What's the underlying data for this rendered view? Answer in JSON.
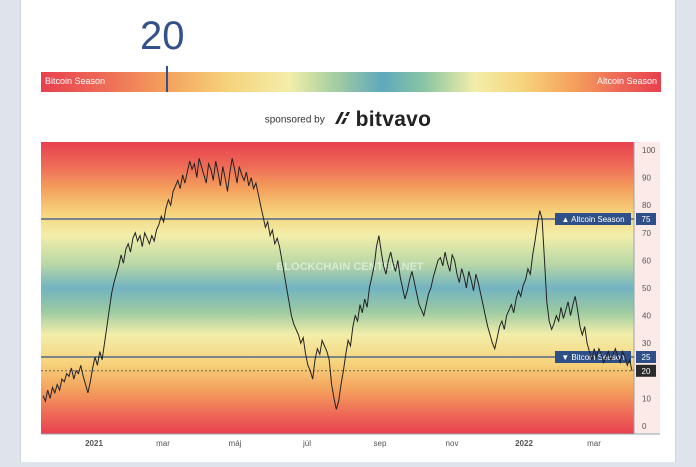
{
  "header": {
    "index_value": "20",
    "scale_left_label": "Bitcoin Season",
    "scale_right_label": "Altcoin Season",
    "current_index": 20
  },
  "sponsor": {
    "text": "sponsored by",
    "name": "bitvavo",
    "logo_icon": "bitvavo-logo-icon"
  },
  "colors": {
    "index_text": "#34528a",
    "season_line": "#34528a",
    "line": "#222222"
  },
  "chart_data": {
    "type": "line",
    "x_tick_labels": [
      "2021",
      "mar",
      "máj",
      "júl",
      "sep",
      "nov",
      "2022",
      "mar"
    ],
    "y_ticks": [
      0,
      10,
      20,
      30,
      40,
      50,
      60,
      70,
      80,
      90,
      100
    ],
    "ylim": [
      0,
      100
    ],
    "watermark": "BLOCKCHAIN CENTER.NET",
    "thresholds": [
      {
        "label": "▲ Altcoin Season",
        "value": 75
      },
      {
        "label": "▼ Bitcoin Season",
        "value": 25
      }
    ],
    "current_value": 20,
    "current_label": "20",
    "series": [
      {
        "values": [
          11,
          9,
          13,
          10,
          14,
          12,
          15,
          13,
          17,
          16,
          19,
          18,
          21,
          17,
          20,
          19,
          22,
          18,
          15,
          12,
          16,
          21,
          25,
          22,
          27,
          24,
          30,
          36,
          42,
          48,
          52,
          55,
          58,
          62,
          59,
          64,
          66,
          63,
          68,
          70,
          67,
          69,
          65,
          70,
          68,
          66,
          69,
          67,
          71,
          73,
          76,
          74,
          79,
          82,
          80,
          85,
          87,
          89,
          86,
          91,
          88,
          92,
          96,
          93,
          95,
          90,
          97,
          94,
          91,
          88,
          95,
          93,
          89,
          96,
          92,
          87,
          94,
          90,
          85,
          92,
          97,
          93,
          88,
          94,
          91,
          89,
          92,
          87,
          90,
          86,
          88,
          84,
          80,
          76,
          72,
          74,
          69,
          71,
          66,
          68,
          65,
          60,
          55,
          50,
          45,
          40,
          37,
          35,
          33,
          30,
          32,
          26,
          22,
          20,
          17,
          24,
          28,
          26,
          31,
          29,
          27,
          24,
          15,
          10,
          6,
          9,
          15,
          20,
          26,
          31,
          29,
          36,
          40,
          38,
          44,
          41,
          46,
          43,
          50,
          54,
          58,
          65,
          69,
          63,
          58,
          55,
          60,
          63,
          59,
          56,
          60,
          54,
          50,
          46,
          49,
          53,
          56,
          52,
          48,
          44,
          42,
          40,
          44,
          48,
          50,
          54,
          57,
          60,
          61,
          58,
          63,
          59,
          56,
          62,
          60,
          55,
          52,
          57,
          54,
          50,
          56,
          53,
          49,
          55,
          52,
          48,
          44,
          40,
          36,
          33,
          30,
          28,
          32,
          36,
          38,
          35,
          40,
          42,
          44,
          41,
          46,
          49,
          47,
          51,
          53,
          57,
          55,
          62,
          67,
          73,
          78,
          75,
          60,
          45,
          38,
          35,
          37,
          40,
          38,
          43,
          39,
          42,
          45,
          40,
          44,
          47,
          42,
          36,
          33,
          36,
          30,
          27,
          24,
          28,
          25,
          28,
          26,
          23,
          25,
          27,
          24,
          26,
          28,
          25,
          23,
          27,
          25,
          22,
          24,
          20
        ]
      }
    ]
  }
}
